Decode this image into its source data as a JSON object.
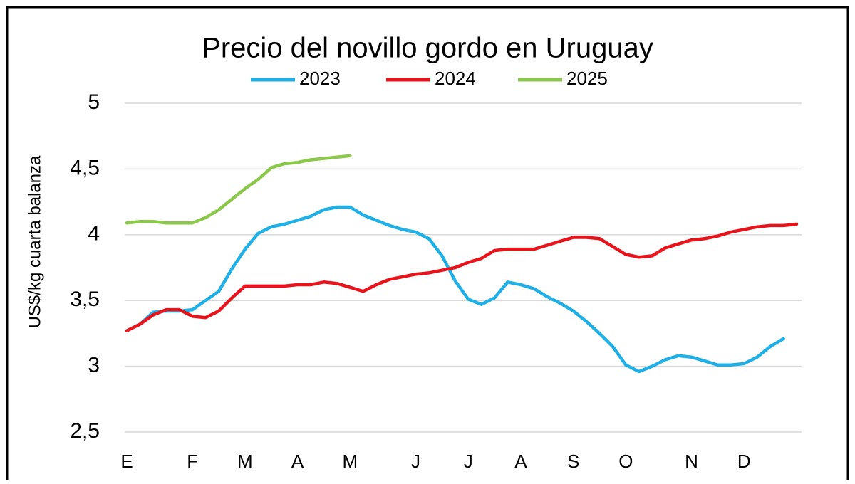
{
  "chart_data": {
    "type": "line",
    "title": "Precio del novillo gordo en Uruguay",
    "y_label": "US$/kg cuarta balanza",
    "categories": [
      "E",
      null,
      null,
      null,
      null,
      "F",
      null,
      null,
      null,
      "M",
      null,
      null,
      null,
      "A",
      null,
      null,
      null,
      "M",
      null,
      null,
      null,
      null,
      "J",
      null,
      null,
      null,
      "J",
      null,
      null,
      null,
      "A",
      null,
      null,
      null,
      "S",
      null,
      null,
      null,
      "O",
      null,
      null,
      null,
      null,
      "N",
      null,
      null,
      null,
      "D",
      null,
      null,
      null,
      null
    ],
    "series": [
      {
        "name": "2023",
        "color": "#1fb0e8",
        "values": [
          3.27,
          3.32,
          3.41,
          3.42,
          3.42,
          3.43,
          3.5,
          3.57,
          3.74,
          3.89,
          4.01,
          4.06,
          4.08,
          4.11,
          4.14,
          4.19,
          4.21,
          4.21,
          4.15,
          4.11,
          4.07,
          4.04,
          4.02,
          3.97,
          3.84,
          3.65,
          3.51,
          3.47,
          3.52,
          3.64,
          3.62,
          3.59,
          3.53,
          3.48,
          3.42,
          3.34,
          3.25,
          3.15,
          3.01,
          2.96,
          3.0,
          3.05,
          3.08,
          3.07,
          3.04,
          3.01,
          3.01,
          3.02,
          3.07,
          3.15,
          3.21,
          null
        ]
      },
      {
        "name": "2024",
        "color": "#e8141b",
        "values": [
          3.27,
          3.32,
          3.39,
          3.43,
          3.43,
          3.38,
          3.37,
          3.42,
          3.52,
          3.61,
          3.61,
          3.61,
          3.61,
          3.62,
          3.62,
          3.64,
          3.63,
          3.6,
          3.57,
          3.62,
          3.66,
          3.68,
          3.7,
          3.71,
          3.73,
          3.75,
          3.79,
          3.82,
          3.88,
          3.89,
          3.89,
          3.89,
          3.92,
          3.95,
          3.98,
          3.98,
          3.97,
          3.91,
          3.85,
          3.83,
          3.84,
          3.9,
          3.93,
          3.96,
          3.97,
          3.99,
          4.02,
          4.04,
          4.06,
          4.07,
          4.07,
          4.08
        ]
      },
      {
        "name": "2025",
        "color": "#8cc84b",
        "values": [
          4.09,
          4.1,
          4.1,
          4.09,
          4.09,
          4.09,
          4.13,
          4.19,
          4.27,
          4.35,
          4.42,
          4.51,
          4.54,
          4.55,
          4.57,
          4.58,
          4.59,
          4.6,
          null,
          null,
          null,
          null,
          null,
          null,
          null,
          null,
          null,
          null,
          null,
          null,
          null,
          null,
          null,
          null,
          null,
          null,
          null,
          null,
          null,
          null,
          null,
          null,
          null,
          null,
          null,
          null,
          null,
          null,
          null,
          null,
          null,
          null
        ]
      }
    ],
    "ylim": [
      2.5,
      5
    ],
    "yticks": [
      {
        "value": 2.5,
        "label": "2,5"
      },
      3,
      {
        "value": 3.5,
        "label": "3,5"
      },
      4,
      {
        "value": 4.5,
        "label": "4,5"
      },
      5
    ],
    "grid": true,
    "legend": "top"
  }
}
